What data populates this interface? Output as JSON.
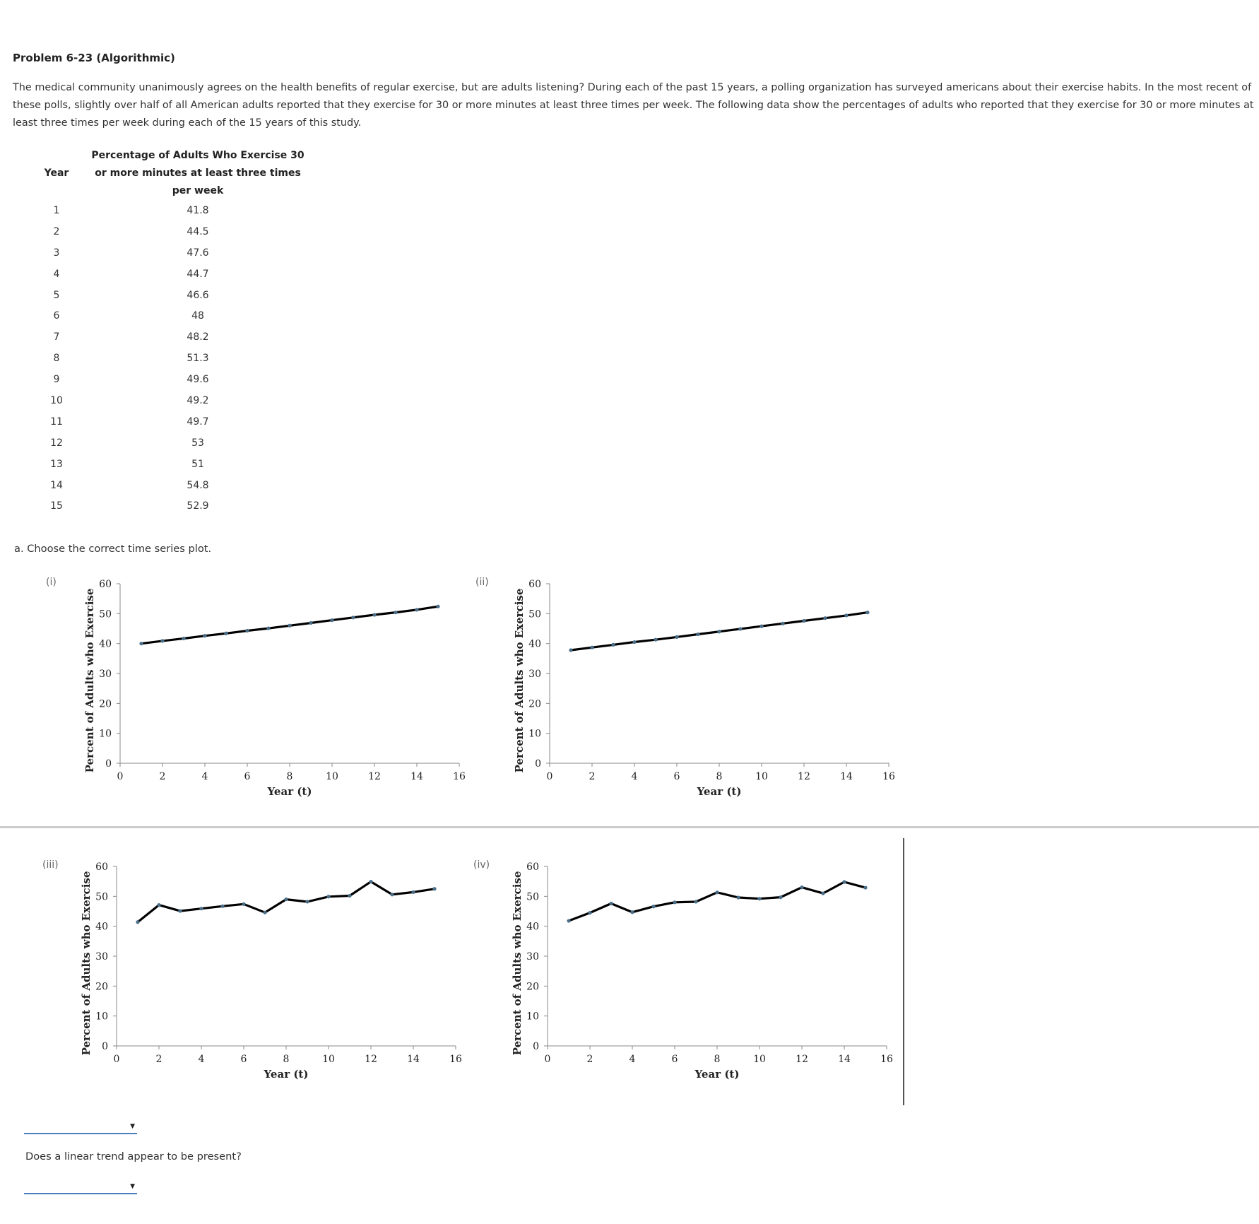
{
  "problem": {
    "title": "Problem 6-23 (Algorithmic)",
    "description": "The medical community unanimously agrees on the health benefits of regular exercise, but are adults listening? During each of the past 15 years, a polling organization has surveyed americans about their exercise habits. In the most recent of these polls, slightly over half of all American adults reported that they exercise for 30 or more minutes at least three times per week. The following data show the percentages of adults who reported that they exercise for 30 or more minutes at least three times per week during each of the 15 years of this study."
  },
  "table": {
    "headers": [
      "Year",
      "Percentage of Adults Who Exercise 30 or more minutes at least three times per week"
    ],
    "rows": [
      [
        "1",
        "41.8"
      ],
      [
        "2",
        "44.5"
      ],
      [
        "3",
        "47.6"
      ],
      [
        "4",
        "44.7"
      ],
      [
        "5",
        "46.6"
      ],
      [
        "6",
        "48"
      ],
      [
        "7",
        "48.2"
      ],
      [
        "8",
        "51.3"
      ],
      [
        "9",
        "49.6"
      ],
      [
        "10",
        "49.2"
      ],
      [
        "11",
        "49.7"
      ],
      [
        "12",
        "53"
      ],
      [
        "13",
        "51"
      ],
      [
        "14",
        "54.8"
      ],
      [
        "15",
        "52.9"
      ]
    ]
  },
  "question_a": "a. Choose the correct time series plot.",
  "question_b": "Does a linear trend appear to be present?",
  "dropdowns": {
    "a_selected": "",
    "b_selected": ""
  },
  "chart_data": [
    {
      "label": "(i)",
      "type": "line",
      "xlabel": "Year (t)",
      "ylabel": "Percent of Adults who Exercise",
      "xlim": [
        0,
        16
      ],
      "ylim": [
        0,
        60
      ],
      "xticks": [
        0,
        2,
        4,
        6,
        8,
        10,
        12,
        14,
        16
      ],
      "yticks": [
        0,
        10,
        20,
        30,
        40,
        50,
        60
      ],
      "x": [
        1,
        2,
        3,
        4,
        5,
        6,
        7,
        8,
        9,
        10,
        11,
        12,
        13,
        14,
        15
      ],
      "values": [
        40,
        40.9,
        41.7,
        42.6,
        43.4,
        44.3,
        45.1,
        46,
        46.9,
        47.8,
        48.7,
        49.6,
        50.4,
        51.3,
        52.4
      ]
    },
    {
      "label": "(ii)",
      "type": "line",
      "xlabel": "Year (t)",
      "ylabel": "Percent of Adults who Exercise",
      "xlim": [
        0,
        16
      ],
      "ylim": [
        0,
        60
      ],
      "xticks": [
        0,
        2,
        4,
        6,
        8,
        10,
        12,
        14,
        16
      ],
      "yticks": [
        0,
        10,
        20,
        30,
        40,
        50,
        60
      ],
      "x": [
        1,
        2,
        3,
        4,
        5,
        6,
        7,
        8,
        9,
        10,
        11,
        12,
        13,
        14,
        15
      ],
      "values": [
        37.8,
        38.7,
        39.6,
        40.5,
        41.3,
        42.2,
        43.1,
        44,
        44.9,
        45.8,
        46.7,
        47.6,
        48.5,
        49.4,
        50.4
      ]
    },
    {
      "label": "(iii)",
      "type": "line",
      "xlabel": "Year (t)",
      "ylabel": "Percent of Adults who Exercise",
      "xlim": [
        0,
        16
      ],
      "ylim": [
        0,
        60
      ],
      "xticks": [
        0,
        2,
        4,
        6,
        8,
        10,
        12,
        14,
        16
      ],
      "yticks": [
        0,
        10,
        20,
        30,
        40,
        50,
        60
      ],
      "x": [
        1,
        2,
        3,
        4,
        5,
        6,
        7,
        8,
        9,
        10,
        11,
        12,
        13,
        14,
        15
      ],
      "values": [
        41.4,
        47.1,
        45.1,
        45.9,
        46.7,
        47.4,
        44.6,
        49,
        48.2,
        49.9,
        50.2,
        54.9,
        50.6,
        51.4,
        52.5
      ]
    },
    {
      "label": "(iv)",
      "type": "line",
      "xlabel": "Year (t)",
      "ylabel": "Percent of Adults who Exercise",
      "xlim": [
        0,
        16
      ],
      "ylim": [
        0,
        60
      ],
      "xticks": [
        0,
        2,
        4,
        6,
        8,
        10,
        12,
        14,
        16
      ],
      "yticks": [
        0,
        10,
        20,
        30,
        40,
        50,
        60
      ],
      "x": [
        1,
        2,
        3,
        4,
        5,
        6,
        7,
        8,
        9,
        10,
        11,
        12,
        13,
        14,
        15
      ],
      "values": [
        41.8,
        44.5,
        47.6,
        44.7,
        46.6,
        48,
        48.2,
        51.3,
        49.6,
        49.2,
        49.7,
        53,
        51,
        54.8,
        52.9
      ]
    }
  ]
}
